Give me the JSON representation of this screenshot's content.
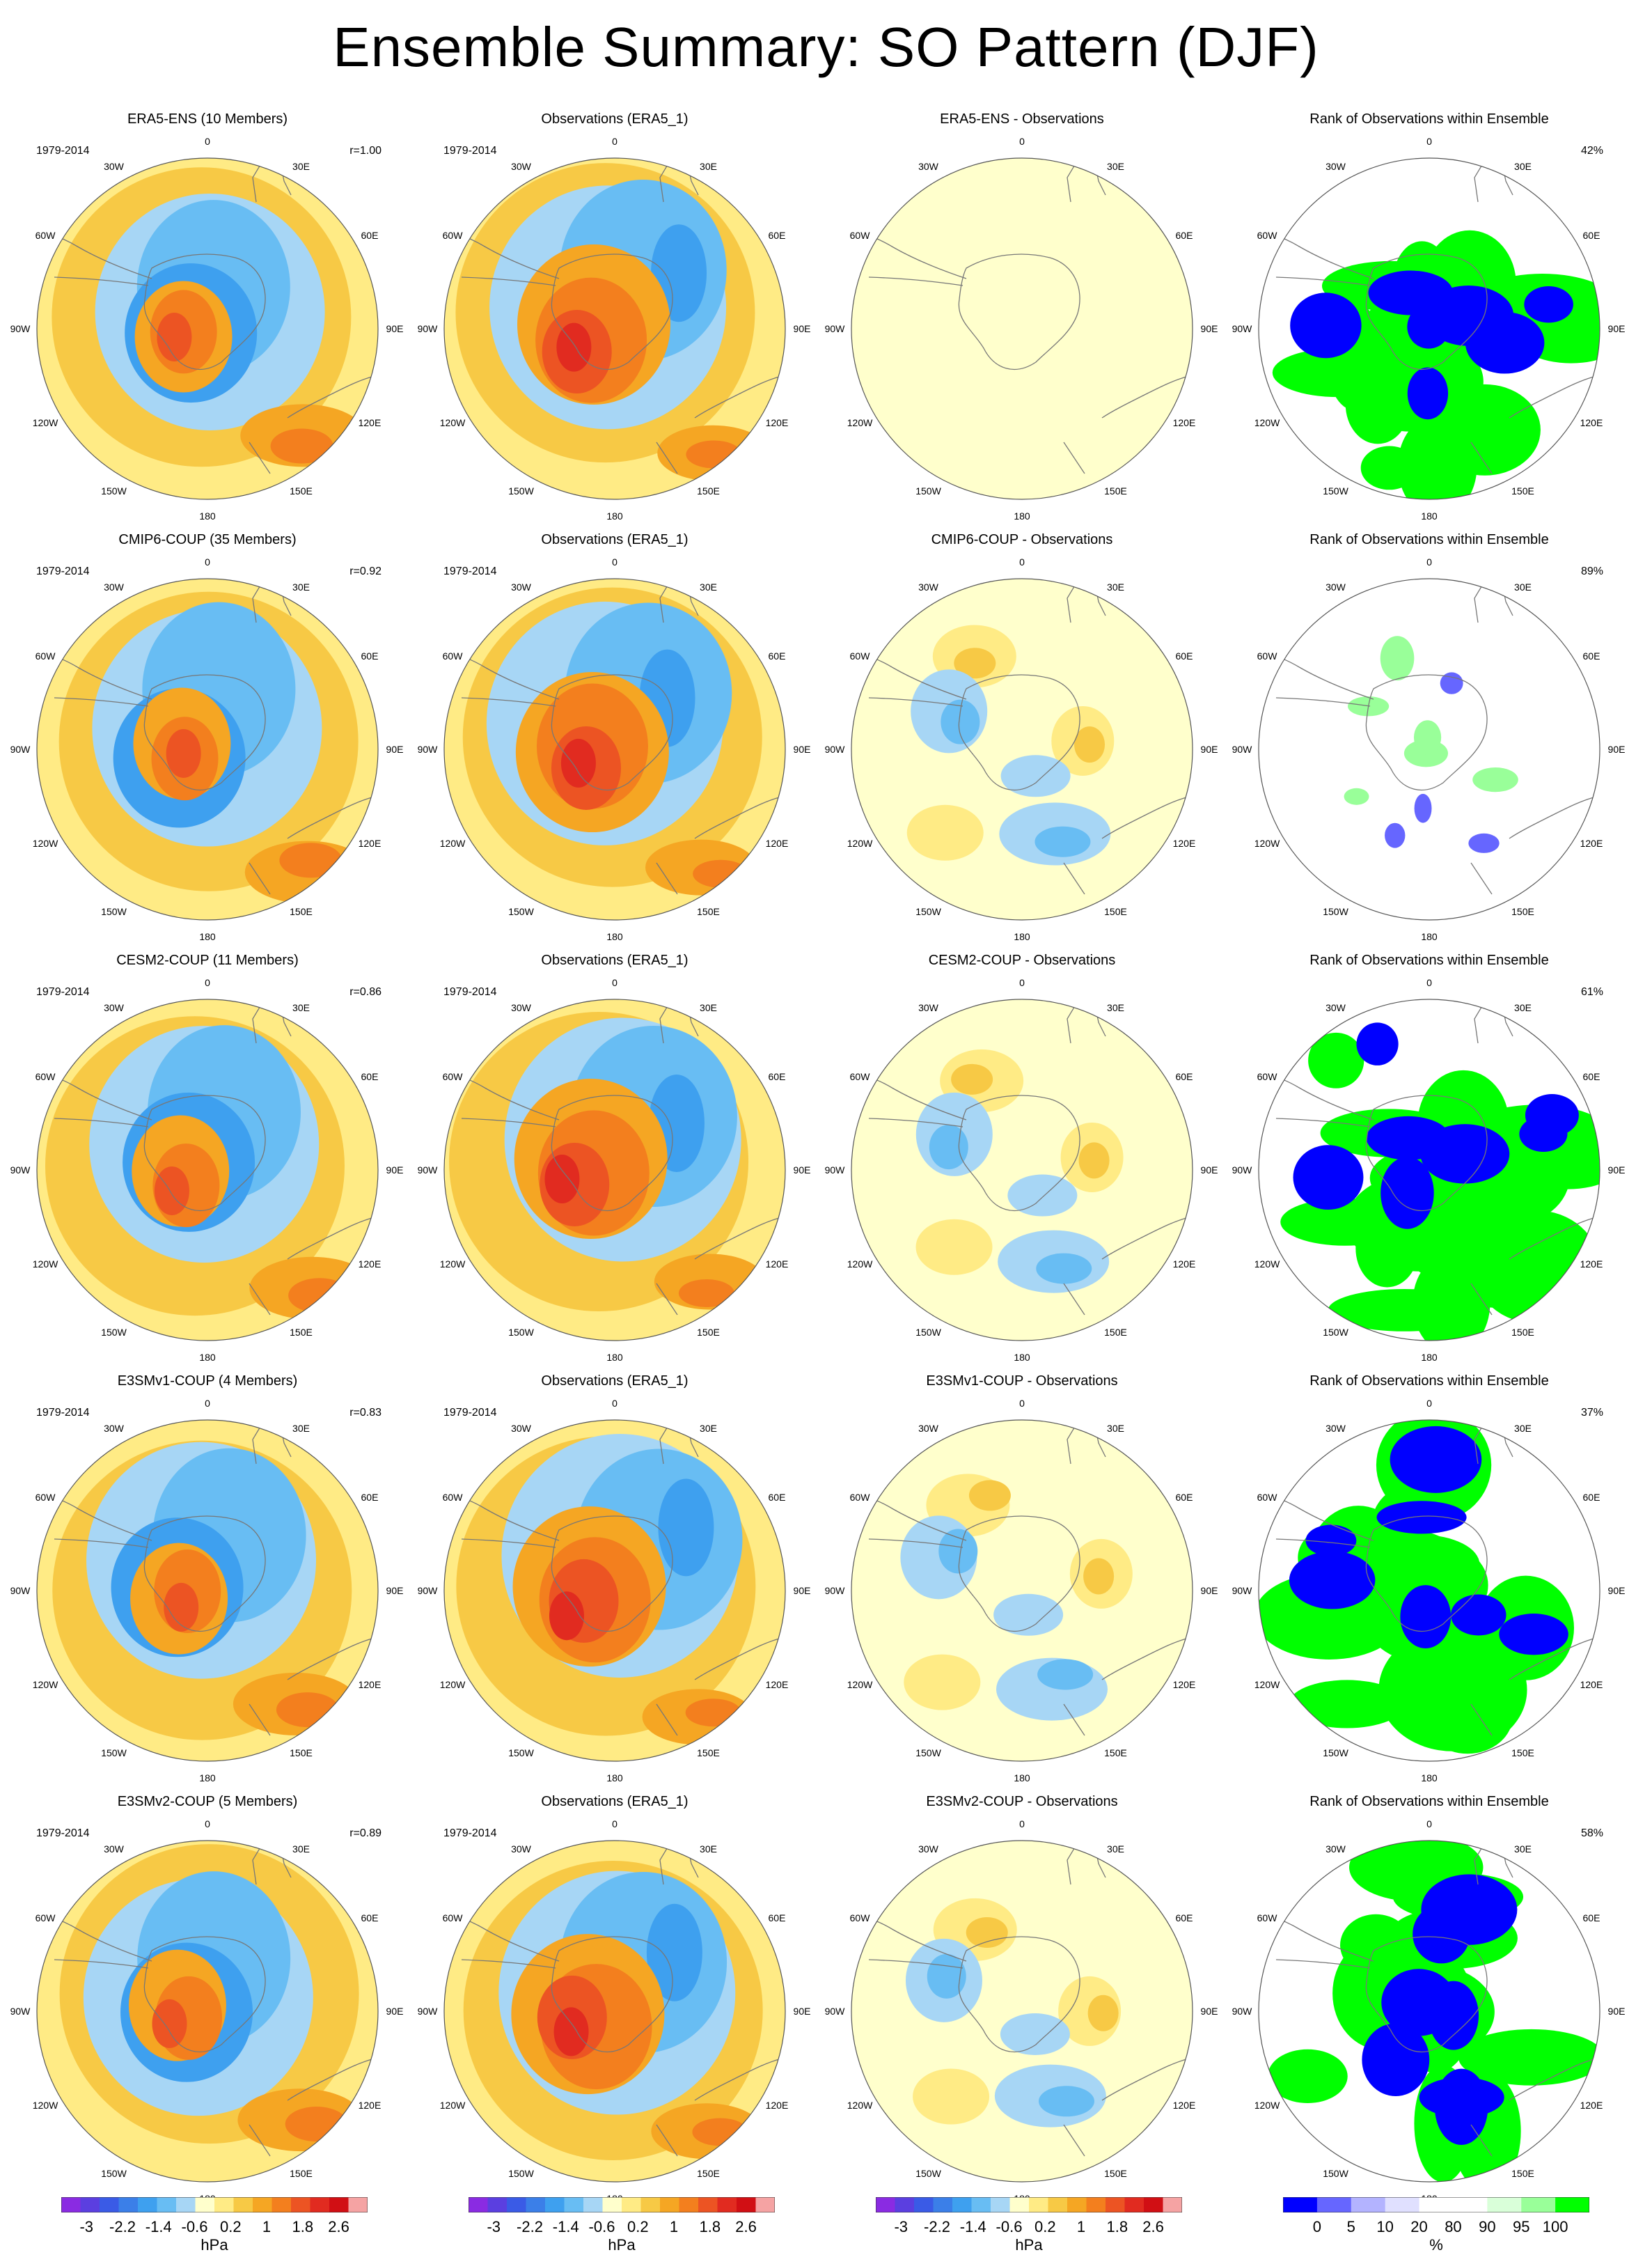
{
  "figure": {
    "title": "Ensemble Summary: SO Pattern (DJF)"
  },
  "chart_data": {
    "type": "heatmap",
    "projection": "south polar stereographic",
    "longitude_labels": [
      "0",
      "30E",
      "60E",
      "90E",
      "120E",
      "150E",
      "180",
      "150W",
      "120W",
      "90W",
      "60W",
      "30W"
    ],
    "colors": {
      "anomaly": [
        "#8a2be2",
        "#5b3fe0",
        "#3a5be6",
        "#3b7fe8",
        "#3ea0ef",
        "#68bdf3",
        "#a7d6f5",
        "#ffffcc",
        "#ffeb85",
        "#f7c945",
        "#f5a623",
        "#f37f1e",
        "#ec5423",
        "#e12b20",
        "#d10f14",
        "#f5a3a3"
      ],
      "rank": [
        "#0000ff",
        "#6666ff",
        "#b3b3ff",
        "#e0e0ff",
        "#ffffff",
        "#ffffff",
        "#d9ffd9",
        "#99ff99",
        "#00ff00"
      ]
    },
    "panels": [
      {
        "col": 0,
        "row": 0,
        "title": "ERA5-ENS (10 Members)",
        "years": "1979-2014",
        "stat": "r=1.00",
        "kind": "model"
      },
      {
        "col": 1,
        "row": 0,
        "title": "Observations (ERA5_1)",
        "years": "1979-2014",
        "stat": "",
        "kind": "obs"
      },
      {
        "col": 2,
        "row": 0,
        "title": "ERA5-ENS - Observations",
        "years": "",
        "stat": "",
        "kind": "diff_zero"
      },
      {
        "col": 3,
        "row": 0,
        "title": "Rank of Observations within Ensemble",
        "years": "",
        "stat": "42%",
        "kind": "rank"
      },
      {
        "col": 0,
        "row": 1,
        "title": "CMIP6-COUP (35 Members)",
        "years": "1979-2014",
        "stat": "r=0.92",
        "kind": "model"
      },
      {
        "col": 1,
        "row": 1,
        "title": "Observations (ERA5_1)",
        "years": "1979-2014",
        "stat": "",
        "kind": "obs"
      },
      {
        "col": 2,
        "row": 1,
        "title": "CMIP6-COUP - Observations",
        "years": "",
        "stat": "",
        "kind": "diff"
      },
      {
        "col": 3,
        "row": 1,
        "title": "Rank of Observations within Ensemble",
        "years": "",
        "stat": "89%",
        "kind": "rank_sparse"
      },
      {
        "col": 0,
        "row": 2,
        "title": "CESM2-COUP (11 Members)",
        "years": "1979-2014",
        "stat": "r=0.86",
        "kind": "model"
      },
      {
        "col": 1,
        "row": 2,
        "title": "Observations (ERA5_1)",
        "years": "1979-2014",
        "stat": "",
        "kind": "obs"
      },
      {
        "col": 2,
        "row": 2,
        "title": "CESM2-COUP - Observations",
        "years": "",
        "stat": "",
        "kind": "diff"
      },
      {
        "col": 3,
        "row": 2,
        "title": "Rank of Observations within Ensemble",
        "years": "",
        "stat": "61%",
        "kind": "rank"
      },
      {
        "col": 0,
        "row": 3,
        "title": "E3SMv1-COUP (4 Members)",
        "years": "1979-2014",
        "stat": "r=0.83",
        "kind": "model"
      },
      {
        "col": 1,
        "row": 3,
        "title": "Observations (ERA5_1)",
        "years": "1979-2014",
        "stat": "",
        "kind": "obs"
      },
      {
        "col": 2,
        "row": 3,
        "title": "E3SMv1-COUP - Observations",
        "years": "",
        "stat": "",
        "kind": "diff"
      },
      {
        "col": 3,
        "row": 3,
        "title": "Rank of Observations within Ensemble",
        "years": "",
        "stat": "37%",
        "kind": "rank"
      },
      {
        "col": 0,
        "row": 4,
        "title": "E3SMv2-COUP (5 Members)",
        "years": "1979-2014",
        "stat": "r=0.89",
        "kind": "model"
      },
      {
        "col": 1,
        "row": 4,
        "title": "Observations (ERA5_1)",
        "years": "1979-2014",
        "stat": "",
        "kind": "obs"
      },
      {
        "col": 2,
        "row": 4,
        "title": "E3SMv2-COUP - Observations",
        "years": "",
        "stat": "",
        "kind": "diff"
      },
      {
        "col": 3,
        "row": 4,
        "title": "Rank of Observations within Ensemble",
        "years": "",
        "stat": "58%",
        "kind": "rank"
      }
    ],
    "colorbars": [
      {
        "col": 0,
        "palette": "anomaly",
        "ticks": [
          "-3",
          "-2.2",
          "-1.4",
          "-0.6",
          "0.2",
          "1",
          "1.8",
          "2.6"
        ],
        "unit": "hPa"
      },
      {
        "col": 1,
        "palette": "anomaly",
        "ticks": [
          "-3",
          "-2.2",
          "-1.4",
          "-0.6",
          "0.2",
          "1",
          "1.8",
          "2.6"
        ],
        "unit": "hPa"
      },
      {
        "col": 2,
        "palette": "anomaly",
        "ticks": [
          "-3",
          "-2.2",
          "-1.4",
          "-0.6",
          "0.2",
          "1",
          "1.8",
          "2.6"
        ],
        "unit": "hPa"
      },
      {
        "col": 3,
        "palette": "rank",
        "ticks": [
          "0",
          "5",
          "10",
          "20",
          "80",
          "90",
          "95",
          "100"
        ],
        "unit": "%"
      }
    ]
  }
}
